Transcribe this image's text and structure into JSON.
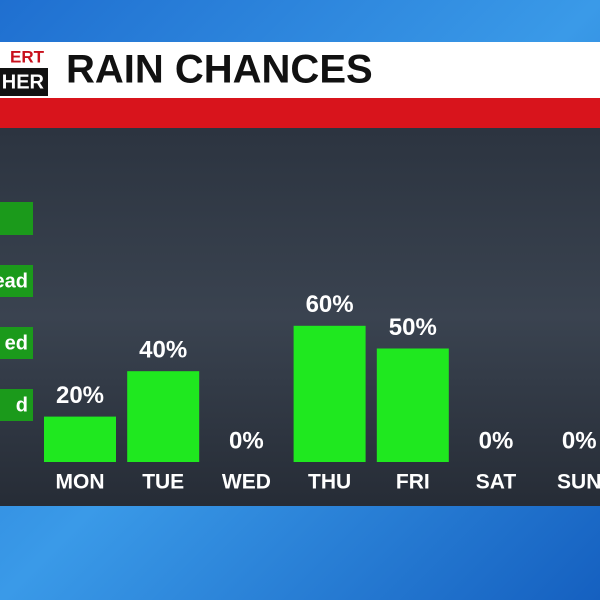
{
  "header": {
    "logo_top": "ERT",
    "logo_bottom": "HER",
    "title": "RAIN CHANCES"
  },
  "legend": [
    "ead",
    "ed",
    "d"
  ],
  "chart_data": {
    "type": "bar",
    "categories": [
      "MON",
      "TUE",
      "WED",
      "THU",
      "FRI",
      "SAT",
      "SUN"
    ],
    "values": [
      20,
      40,
      0,
      60,
      50,
      0,
      0
    ],
    "value_labels": [
      "20%",
      "40%",
      "0%",
      "60%",
      "50%",
      "0%",
      "0%"
    ],
    "color": "#1fe81f",
    "ylim": [
      0,
      100
    ]
  }
}
